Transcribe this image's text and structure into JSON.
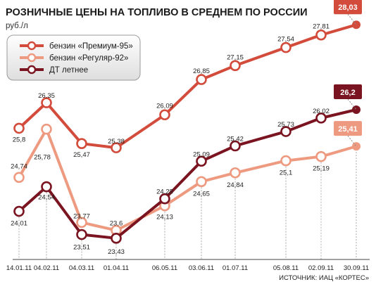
{
  "chart_data": {
    "type": "line",
    "title": "РОЗНИЧНЫЕ ЦЕНЫ НА ТОПЛИВО В СРЕДНЕМ ПО РОССИИ",
    "ylabel": "руб./л",
    "source": "ИСТОЧНИК: ИАЦ «КОРТЕС»",
    "x": [
      "14.01.11",
      "04.02.11",
      "04.03.11",
      "01.04.11",
      "06.05.11",
      "03.06.11",
      "01.07.11",
      "05.08.11",
      "02.09.11",
      "30.09.11"
    ],
    "ylim": [
      23.2,
      28.2
    ],
    "grid": false,
    "legend_position": "top-left",
    "series": [
      {
        "name": "бензин «Премиум-95»",
        "color": "#d24b3b",
        "values": [
          25.8,
          26.35,
          25.47,
          25.38,
          26.09,
          26.85,
          27.15,
          27.54,
          27.81,
          28.03
        ],
        "labels": [
          "25,8",
          "26,35",
          "25,47",
          "25,38",
          "26,09",
          "26,85",
          "27,15",
          "27,54",
          "27,81",
          "28,03"
        ]
      },
      {
        "name": "бензин «Регуляр-92»",
        "color": "#ee9a80",
        "values": [
          24.74,
          25.78,
          23.77,
          23.6,
          24.13,
          24.65,
          24.84,
          25.1,
          25.19,
          25.41
        ],
        "labels": [
          "24,74",
          "25,78",
          "23,77",
          "23,6",
          "24,13",
          "24,65",
          "24,84",
          "25,1",
          "25,19",
          "25,41"
        ]
      },
      {
        "name": "ДТ летнее",
        "color": "#7a1420",
        "values": [
          24.01,
          24.54,
          23.51,
          23.43,
          24.28,
          25.09,
          25.42,
          25.73,
          26.02,
          26.2
        ],
        "labels": [
          "24,01",
          "24,54",
          "23,51",
          "23,43",
          "24,28",
          "25,09",
          "25,42",
          "25,73",
          "26,02",
          "26,2"
        ]
      }
    ]
  }
}
